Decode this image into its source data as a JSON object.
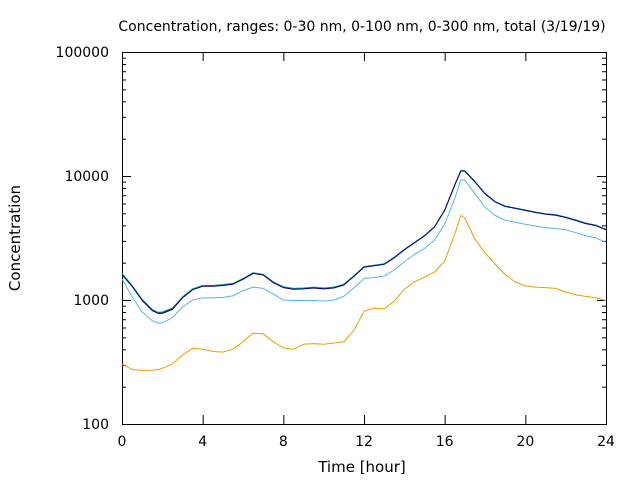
{
  "chart_data": {
    "type": "line",
    "title": "Concentration, ranges: 0-30 nm, 0-100 nm, 0-300 nm, total (3/19/19)",
    "xlabel": "Time [hour]",
    "ylabel": "Concentration",
    "xlim": [
      0,
      24
    ],
    "ylim": [
      100,
      100000
    ],
    "yscale": "log",
    "grid": false,
    "legend": "none",
    "x_ticks": [
      0,
      4,
      8,
      12,
      16,
      20,
      24
    ],
    "x_tick_labels": [
      "0",
      "4",
      "8",
      "12",
      "16",
      "20",
      "24"
    ],
    "y_ticks": [
      100,
      1000,
      10000,
      100000
    ],
    "y_tick_labels": [
      "100",
      "1000",
      "10000",
      "100000"
    ],
    "x": [
      0,
      0.5,
      1,
      1.5,
      1.8,
      2,
      2.5,
      3,
      3.5,
      4,
      4.5,
      5,
      5.5,
      6,
      6.5,
      7,
      7.5,
      8,
      8.5,
      9,
      9.5,
      10,
      10.5,
      11,
      11.5,
      12,
      12.5,
      13,
      13.5,
      14,
      14.5,
      15,
      15.5,
      16,
      16.5,
      16.8,
      17,
      17.5,
      18,
      18.5,
      19,
      19.5,
      20,
      20.5,
      21,
      21.5,
      22,
      22.5,
      23,
      23.5,
      24
    ],
    "series": [
      {
        "color": "#e69f00",
        "values": [
          305,
          275,
          270,
          272,
          275,
          282,
          305,
          360,
          408,
          400,
          385,
          380,
          400,
          460,
          540,
          535,
          460,
          410,
          400,
          440,
          445,
          440,
          450,
          460,
          570,
          810,
          860,
          850,
          980,
          1220,
          1400,
          1530,
          1680,
          2060,
          3400,
          4800,
          4600,
          3100,
          2400,
          1950,
          1600,
          1400,
          1300,
          1270,
          1260,
          1240,
          1160,
          1100,
          1070,
          1040,
          990
        ]
      },
      {
        "color": "#56b4e9",
        "values": [
          1480,
          1060,
          800,
          680,
          650,
          655,
          720,
          880,
          1000,
          1040,
          1040,
          1050,
          1080,
          1190,
          1270,
          1240,
          1120,
          1000,
          990,
          990,
          990,
          980,
          1000,
          1070,
          1250,
          1490,
          1520,
          1560,
          1750,
          2030,
          2330,
          2600,
          3050,
          4100,
          6600,
          9300,
          9300,
          7200,
          5600,
          4800,
          4400,
          4240,
          4080,
          3950,
          3830,
          3780,
          3680,
          3490,
          3290,
          3170,
          2920
        ]
      },
      {
        "color": "#9400d3",
        "values": [
          1620,
          1300,
          1000,
          830,
          790,
          790,
          850,
          1050,
          1220,
          1300,
          1300,
          1320,
          1350,
          1480,
          1650,
          1600,
          1390,
          1270,
          1230,
          1240,
          1260,
          1240,
          1260,
          1330,
          1560,
          1850,
          1900,
          1950,
          2200,
          2550,
          2900,
          3300,
          3900,
          5300,
          8500,
          11000,
          11000,
          9000,
          7200,
          6200,
          5700,
          5500,
          5300,
          5100,
          4950,
          4850,
          4650,
          4400,
          4150,
          4000,
          3700
        ]
      },
      {
        "color": "#009e73",
        "values": [
          1640,
          1310,
          1010,
          840,
          795,
          800,
          860,
          1060,
          1230,
          1310,
          1310,
          1330,
          1360,
          1490,
          1660,
          1610,
          1400,
          1280,
          1240,
          1250,
          1270,
          1250,
          1270,
          1340,
          1570,
          1860,
          1910,
          1960,
          2210,
          2560,
          2910,
          3310,
          3910,
          5310,
          8520,
          11050,
          11050,
          9050,
          7230,
          6220,
          5720,
          5520,
          5320,
          5120,
          4970,
          4870,
          4670,
          4420,
          4170,
          4020,
          3720
        ]
      },
      {
        "color": "#000080",
        "values": [
          1600,
          1290,
          990,
          820,
          780,
          780,
          840,
          1040,
          1210,
          1290,
          1290,
          1310,
          1340,
          1470,
          1640,
          1590,
          1380,
          1260,
          1220,
          1230,
          1250,
          1230,
          1250,
          1320,
          1550,
          1840,
          1890,
          1940,
          2190,
          2540,
          2890,
          3290,
          3890,
          5290,
          8480,
          10950,
          10950,
          8970,
          7180,
          6180,
          5680,
          5480,
          5280,
          5080,
          4930,
          4830,
          4630,
          4380,
          4130,
          3980,
          3680
        ]
      }
    ]
  }
}
